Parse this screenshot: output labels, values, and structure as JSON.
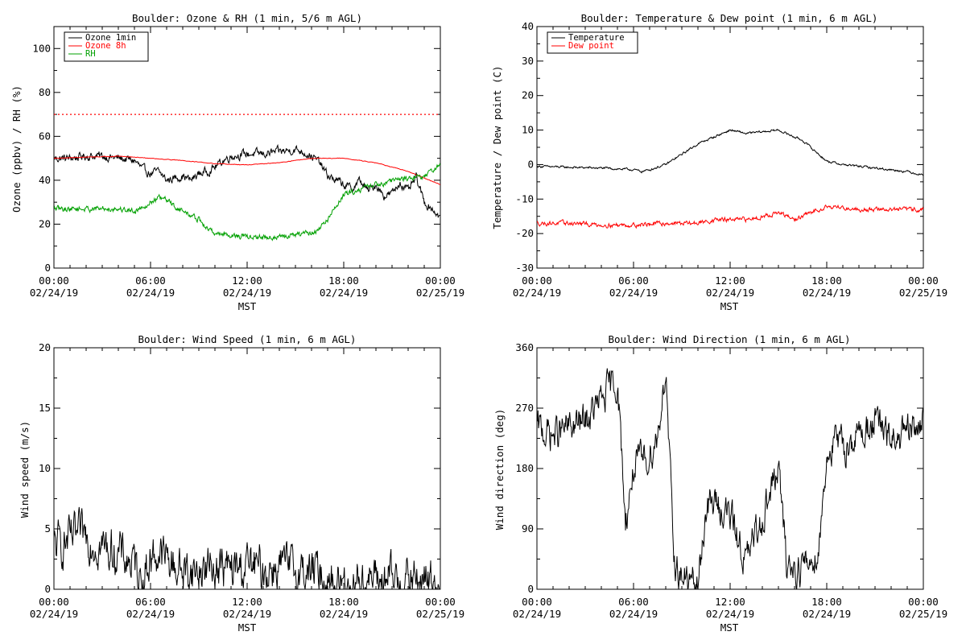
{
  "chart_data": [
    {
      "id": "ozone_rh",
      "type": "line",
      "title": "Boulder: Ozone & RH (1 min, 5/6 m AGL)",
      "ylabel": "Ozone (ppbv) / RH (%)",
      "xlabel": "MST",
      "xlim": [
        0,
        24
      ],
      "ylim": [
        0,
        110
      ],
      "yticks": [
        0,
        20,
        40,
        60,
        80,
        100
      ],
      "xtick_times": [
        "00:00",
        "06:00",
        "12:00",
        "18:00",
        "00:00"
      ],
      "xtick_dates": [
        "02/24/19",
        "02/24/19",
        "02/24/19",
        "02/24/19",
        "02/25/19"
      ],
      "legend_position": "top-left",
      "reference_line": {
        "y": 70,
        "color": "#ff0000",
        "style": "dotted"
      },
      "series": [
        {
          "name": "Ozone 1min",
          "color": "#000000",
          "noise": 1.5,
          "x": [
            0,
            1,
            2,
            3,
            4,
            5,
            5.5,
            6,
            6.5,
            7,
            7.5,
            8,
            8.5,
            9,
            9.5,
            10,
            10.5,
            11,
            12,
            13,
            14,
            15,
            15.5,
            16,
            16.5,
            17,
            17.5,
            18,
            18.5,
            19,
            19.5,
            20,
            20.5,
            21,
            21.5,
            22,
            22.5,
            23,
            23.5,
            24
          ],
          "y": [
            50,
            50,
            51,
            51,
            50,
            49,
            45,
            43,
            44,
            40,
            41,
            42,
            40,
            43,
            44,
            46,
            49,
            51,
            52,
            52,
            53,
            54,
            53,
            51,
            48,
            42,
            40,
            38,
            36,
            40,
            35,
            38,
            33,
            34,
            39,
            35,
            41,
            30,
            27,
            23
          ]
        },
        {
          "name": "Ozone 8h",
          "color": "#ff0000",
          "noise": 0.1,
          "x": [
            0,
            2,
            4,
            6,
            8,
            10,
            12,
            14,
            16,
            18,
            19,
            20,
            21,
            22,
            23,
            24
          ],
          "y": [
            50,
            50.5,
            51,
            50,
            49,
            47.5,
            47,
            48,
            50,
            50,
            49,
            48,
            46,
            44,
            41,
            38
          ]
        },
        {
          "name": "RH",
          "color": "#00a000",
          "noise": 1.0,
          "x": [
            0,
            2,
            4,
            5,
            5.5,
            6,
            6.5,
            7,
            7.5,
            8,
            8.5,
            9,
            9.5,
            10,
            11,
            12,
            13,
            14,
            15,
            16,
            16.5,
            17,
            17.5,
            18,
            19,
            20,
            21,
            22,
            23,
            23.5,
            24
          ],
          "y": [
            27,
            27,
            27,
            26,
            28,
            30,
            32,
            31,
            28,
            26,
            24,
            22,
            18,
            16,
            15,
            14,
            14,
            14,
            15,
            16,
            18,
            22,
            28,
            33,
            36,
            38,
            40,
            41,
            42,
            44,
            47
          ]
        }
      ]
    },
    {
      "id": "temp_dew",
      "type": "line",
      "title": "Boulder: Temperature & Dew point (1 min, 6 m AGL)",
      "ylabel": "Temperature / Dew point (C)",
      "xlabel": "MST",
      "xlim": [
        0,
        24
      ],
      "ylim": [
        -30,
        40
      ],
      "yticks": [
        -30,
        -20,
        -10,
        0,
        10,
        20,
        30,
        40
      ],
      "xtick_times": [
        "00:00",
        "06:00",
        "12:00",
        "18:00",
        "00:00"
      ],
      "xtick_dates": [
        "02/24/19",
        "02/24/19",
        "02/24/19",
        "02/24/19",
        "02/25/19"
      ],
      "legend_position": "top-left",
      "series": [
        {
          "name": "Temperature",
          "color": "#000000",
          "noise": 0.25,
          "x": [
            0,
            2,
            4,
            6,
            6.5,
            7,
            8,
            9,
            10,
            11,
            12,
            13,
            14,
            15,
            16,
            16.5,
            17,
            18,
            19,
            20,
            21,
            22,
            23,
            24
          ],
          "y": [
            -0.5,
            -0.8,
            -1,
            -1.5,
            -2,
            -1.5,
            0,
            3,
            6,
            8,
            10,
            9,
            9.5,
            10,
            8,
            7,
            5,
            1,
            0,
            -0.5,
            -1,
            -1.5,
            -2,
            -3
          ]
        },
        {
          "name": "Dew point",
          "color": "#ff0000",
          "noise": 0.5,
          "x": [
            0,
            2,
            4,
            6,
            8,
            10,
            11,
            12,
            13,
            14,
            15,
            16,
            17,
            18,
            19,
            20,
            22,
            24
          ],
          "y": [
            -17,
            -17,
            -17.5,
            -17.5,
            -17,
            -17,
            -16,
            -16,
            -16,
            -15,
            -14,
            -16,
            -14,
            -12,
            -12.5,
            -13,
            -13,
            -13
          ]
        }
      ]
    },
    {
      "id": "wind_speed",
      "type": "line",
      "title": "Boulder: Wind Speed (1 min, 6 m AGL)",
      "ylabel": "Wind speed (m/s)",
      "xlabel": "MST",
      "xlim": [
        0,
        24
      ],
      "ylim": [
        0,
        20
      ],
      "yticks": [
        0,
        5,
        10,
        15,
        20
      ],
      "xtick_times": [
        "00:00",
        "06:00",
        "12:00",
        "18:00",
        "00:00"
      ],
      "xtick_dates": [
        "02/24/19",
        "02/24/19",
        "02/24/19",
        "02/24/19",
        "02/25/19"
      ],
      "series": [
        {
          "name": "",
          "color": "#000000",
          "noise": 1.4,
          "floor": 0,
          "x": [
            0,
            1,
            2,
            3,
            4,
            5,
            5.5,
            6,
            6.5,
            7,
            7.5,
            8,
            9,
            10,
            11,
            12,
            13,
            14,
            15,
            16,
            17,
            17.5,
            18,
            19,
            20,
            21,
            22,
            23,
            24
          ],
          "y": [
            3.5,
            4,
            4.5,
            3.5,
            3,
            2,
            1,
            2.5,
            3,
            2.5,
            2,
            1.5,
            1.5,
            2,
            1.5,
            2,
            1.5,
            2,
            1.5,
            1.5,
            1,
            0.5,
            0.5,
            0.8,
            0.8,
            0.8,
            0.8,
            0.7,
            0.6
          ]
        }
      ]
    },
    {
      "id": "wind_dir",
      "type": "line",
      "title": "Boulder: Wind Direction (1 min, 6 m AGL)",
      "ylabel": "Wind direction (deg)",
      "xlabel": "MST",
      "xlim": [
        0,
        24
      ],
      "ylim": [
        0,
        360
      ],
      "yticks": [
        0,
        90,
        180,
        270,
        360
      ],
      "xtick_times": [
        "00:00",
        "06:00",
        "12:00",
        "18:00",
        "00:00"
      ],
      "xtick_dates": [
        "02/24/19",
        "02/24/19",
        "02/24/19",
        "02/24/19",
        "02/25/19"
      ],
      "series": [
        {
          "name": "",
          "color": "#000000",
          "noise": 20,
          "floor": 0,
          "ceil": 360,
          "x": [
            0,
            1,
            2,
            3,
            4,
            4.5,
            5,
            5.5,
            6,
            6.5,
            7,
            7.5,
            8,
            8.5,
            9,
            9.5,
            10,
            10.5,
            11,
            12,
            13,
            14,
            15,
            15.5,
            16,
            17,
            17.5,
            18,
            18.5,
            19,
            20,
            21,
            22,
            23,
            24
          ],
          "y": [
            240,
            230,
            240,
            250,
            280,
            300,
            310,
            100,
            180,
            190,
            200,
            230,
            330,
            40,
            20,
            10,
            5,
            120,
            130,
            110,
            40,
            110,
            180,
            40,
            30,
            40,
            60,
            200,
            220,
            210,
            230,
            250,
            220,
            230,
            250
          ]
        }
      ]
    }
  ]
}
